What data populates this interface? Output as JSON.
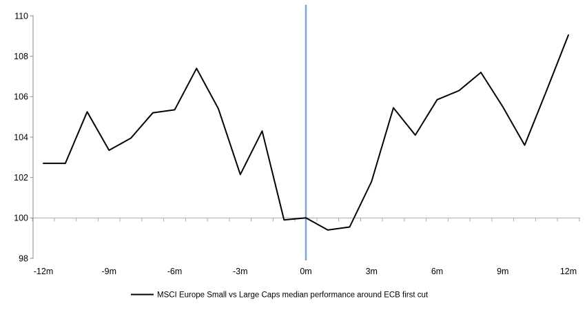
{
  "page": {
    "background": "#ffffff"
  },
  "chart_data": {
    "type": "line",
    "title": "",
    "xlabel": "",
    "ylabel": "",
    "x_unit": "months relative to ECB first cut",
    "x": [
      -12,
      -11,
      -10,
      -9,
      -8,
      -7,
      -6,
      -5,
      -4,
      -3,
      -2,
      -1,
      0,
      1,
      2,
      3,
      4,
      5,
      6,
      7,
      8,
      9,
      10,
      11,
      12
    ],
    "series": [
      {
        "name": "MSCI Europe Small vs Large Caps median performance around ECB first cut",
        "color": "#000000",
        "stroke_width": 2,
        "values": [
          102.7,
          102.7,
          105.25,
          103.35,
          103.95,
          105.2,
          105.35,
          107.4,
          105.4,
          102.15,
          104.3,
          99.9,
          100.0,
          99.4,
          99.55,
          101.8,
          105.45,
          104.1,
          105.85,
          106.3,
          107.2,
          105.5,
          103.6,
          106.3,
          109.05
        ]
      }
    ],
    "ylim": [
      98,
      110
    ],
    "xlim": [
      -12.5,
      12.5
    ],
    "y_ticks": [
      110,
      108,
      106,
      104,
      102,
      100,
      98
    ],
    "y_tick_labels": [
      "110",
      "108",
      "106",
      "104",
      "102",
      "100",
      "98"
    ],
    "x_tick_values": [
      -12,
      -9,
      -6,
      -3,
      0,
      3,
      6,
      9,
      12
    ],
    "x_tick_labels": [
      "-12m",
      "-9m",
      "-6m",
      "-3m",
      "0m",
      "3m",
      "6m",
      "9m",
      "12m"
    ],
    "grid": "off",
    "baseline_value": 100,
    "baseline_color": "#a6a6a6",
    "event_line_value": 0,
    "event_line_color": "#7ea6cc",
    "axis_color": "#8c8c8c",
    "text_color": "#000000",
    "legend_position": "bottom"
  }
}
